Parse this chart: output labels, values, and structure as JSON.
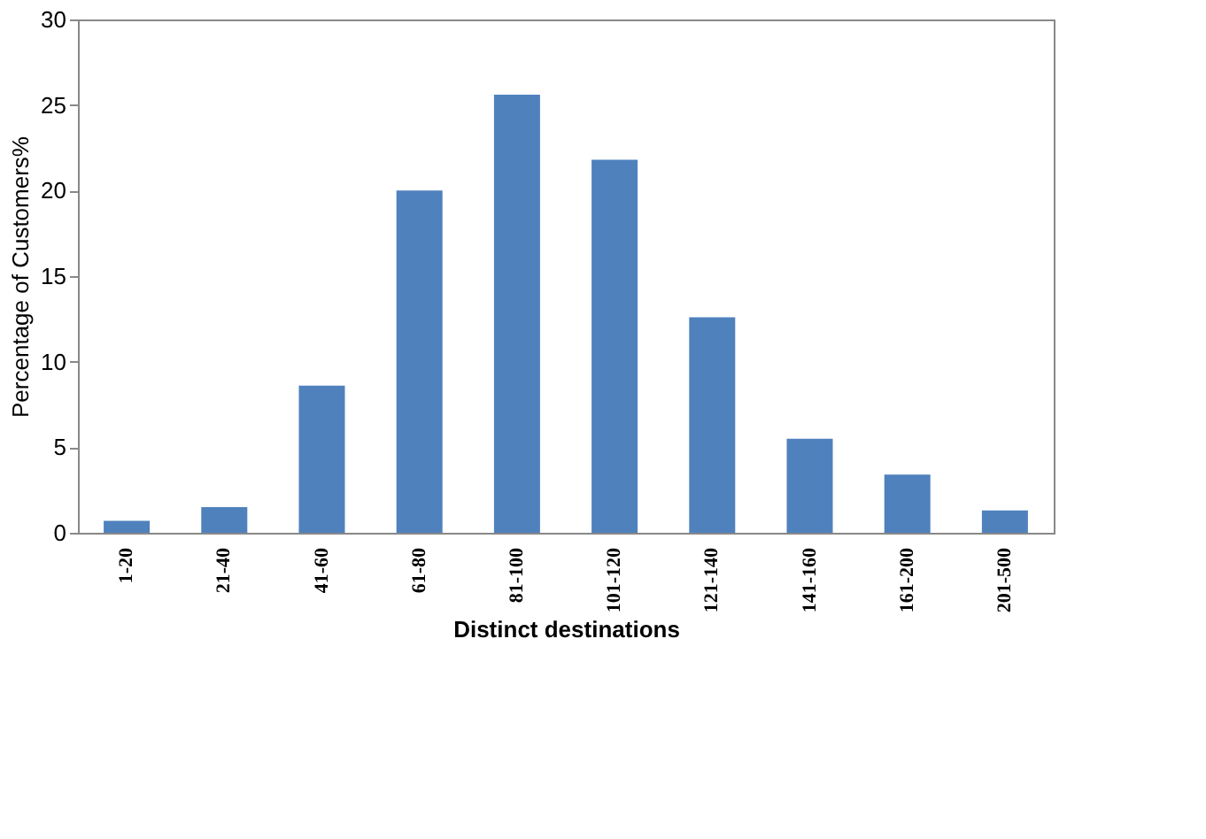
{
  "chart_data": {
    "type": "bar",
    "xlabel": "Distinct destinations",
    "ylabel": "Percentage of Customers%",
    "categories": [
      "1-20",
      "21-40",
      "41-60",
      "61-80",
      "81-100",
      "101-120",
      "121-140",
      "141-160",
      "161-200",
      "201-500"
    ],
    "values": [
      0.7,
      1.5,
      8.6,
      20.0,
      25.6,
      21.8,
      12.6,
      5.5,
      3.4,
      1.3
    ],
    "color": "#4f81bd",
    "ylim": [
      0,
      30
    ],
    "yticks": [
      0,
      5,
      10,
      15,
      20,
      25,
      30
    ],
    "grid": false
  }
}
